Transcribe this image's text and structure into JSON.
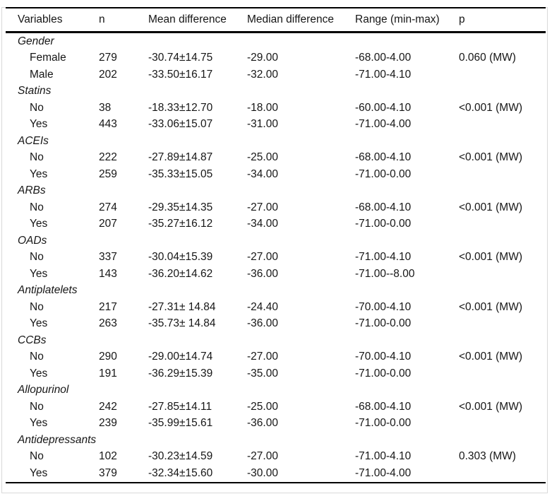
{
  "table": {
    "columns": [
      "Variables",
      "n",
      "Mean difference",
      "Median difference",
      "Range (min-max)",
      "p"
    ],
    "groups": [
      {
        "label": "Gender",
        "rows": [
          {
            "variable": "Female",
            "n": "279",
            "mean": "-30.74±14.75",
            "median": "-29.00",
            "range": "-68.00-4.00",
            "p": "0.060 (MW)"
          },
          {
            "variable": "Male",
            "n": "202",
            "mean": "-33.50±16.17",
            "median": "-32.00",
            "range": "-71.00-4.10",
            "p": ""
          }
        ]
      },
      {
        "label": "Statins",
        "rows": [
          {
            "variable": "No",
            "n": "38",
            "mean": "-18.33±12.70",
            "median": "-18.00",
            "range": "-60.00-4.10",
            "p": "<0.001 (MW)"
          },
          {
            "variable": "Yes",
            "n": "443",
            "mean": "-33.06±15.07",
            "median": "-31.00",
            "range": "-71.00-4.00",
            "p": ""
          }
        ]
      },
      {
        "label": "ACEIs",
        "rows": [
          {
            "variable": "No",
            "n": "222",
            "mean": "-27.89±14.87",
            "median": "-25.00",
            "range": "-68.00-4.10",
            "p": "<0.001 (MW)"
          },
          {
            "variable": "Yes",
            "n": "259",
            "mean": "-35.33±15.05",
            "median": "-34.00",
            "range": "-71.00-0.00",
            "p": ""
          }
        ]
      },
      {
        "label": "ARBs",
        "rows": [
          {
            "variable": "No",
            "n": "274",
            "mean": "-29.35±14.35",
            "median": "-27.00",
            "range": "-68.00-4.10",
            "p": "<0.001 (MW)"
          },
          {
            "variable": "Yes",
            "n": "207",
            "mean": "-35.27±16.12",
            "median": "-34.00",
            "range": "-71.00-0.00",
            "p": ""
          }
        ]
      },
      {
        "label": "OADs",
        "rows": [
          {
            "variable": "No",
            "n": "337",
            "mean": "-30.04±15.39",
            "median": "-27.00",
            "range": "-71.00-4.10",
            "p": "<0.001 (MW)"
          },
          {
            "variable": "Yes",
            "n": "143",
            "mean": "-36.20±14.62",
            "median": "-36.00",
            "range": "-71.00--8.00",
            "p": ""
          }
        ]
      },
      {
        "label": "Antiplatelets",
        "rows": [
          {
            "variable": "No",
            "n": "217",
            "mean": "-27.31± 14.84",
            "median": "-24.40",
            "range": "-70.00-4.10",
            "p": "<0.001 (MW)"
          },
          {
            "variable": "Yes",
            "n": "263",
            "mean": "-35.73± 14.84",
            "median": "-36.00",
            "range": "-71.00-0.00",
            "p": ""
          }
        ]
      },
      {
        "label": "CCBs",
        "rows": [
          {
            "variable": "No",
            "n": "290",
            "mean": "-29.00±14.74",
            "median": "-27.00",
            "range": "-70.00-4.10",
            "p": "<0.001 (MW)"
          },
          {
            "variable": "Yes",
            "n": "191",
            "mean": "-36.29±15.39",
            "median": "-35.00",
            "range": "-71.00-0.00",
            "p": ""
          }
        ]
      },
      {
        "label": "Allopurinol",
        "rows": [
          {
            "variable": "No",
            "n": "242",
            "mean": "-27.85±14.11",
            "median": "-25.00",
            "range": "-68.00-4.10",
            "p": "<0.001 (MW)"
          },
          {
            "variable": "Yes",
            "n": "239",
            "mean": "-35.99±15.61",
            "median": "-36.00",
            "range": "-71.00-0.00",
            "p": ""
          }
        ]
      },
      {
        "label": "Antidepressants",
        "rows": [
          {
            "variable": "No",
            "n": "102",
            "mean": "-30.23±14.59",
            "median": "-27.00",
            "range": "-71.00-4.10",
            "p": "0.303 (MW)"
          },
          {
            "variable": "Yes",
            "n": "379",
            "mean": "-32.34±15.60",
            "median": "-30.00",
            "range": "-71.00-4.00",
            "p": ""
          }
        ]
      }
    ]
  }
}
